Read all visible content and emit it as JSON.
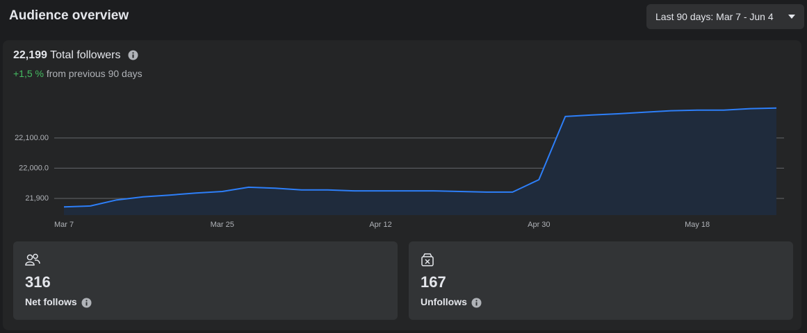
{
  "header": {
    "title": "Audience overview",
    "date_range": "Last 90 days: Mar 7 - Jun 4"
  },
  "summary": {
    "total": "22,199",
    "total_label": "Total followers",
    "change": "+1,5 %",
    "change_label": "from previous 90 days"
  },
  "chart_data": {
    "type": "line",
    "color": "#2d7ff9",
    "area_color": "#1f2b3c",
    "categories": [
      "Mar 7",
      null,
      null,
      null,
      null,
      null,
      "Mar 25",
      null,
      null,
      null,
      null,
      null,
      "Apr 12",
      null,
      null,
      null,
      null,
      null,
      "Apr 30",
      null,
      null,
      null,
      null,
      null,
      "May 18",
      null,
      null,
      null
    ],
    "values": [
      21872,
      21875,
      21895,
      21905,
      21911,
      21918,
      21923,
      21937,
      21934,
      21928,
      21928,
      21925,
      21925,
      21925,
      21925,
      21923,
      21921,
      21921,
      21962,
      22171,
      22176,
      22180,
      22185,
      22190,
      22192,
      22192,
      22197,
      22199
    ],
    "ylim": [
      21845,
      22235
    ],
    "yticks": [
      {
        "value": 21900,
        "label": "21,900"
      },
      {
        "value": 22000,
        "label": "22,000.0"
      },
      {
        "value": 22100,
        "label": "22,100.00"
      }
    ],
    "grid": true
  },
  "cards": [
    {
      "value": "316",
      "label": "Net follows"
    },
    {
      "value": "167",
      "label": "Unfollows"
    }
  ]
}
